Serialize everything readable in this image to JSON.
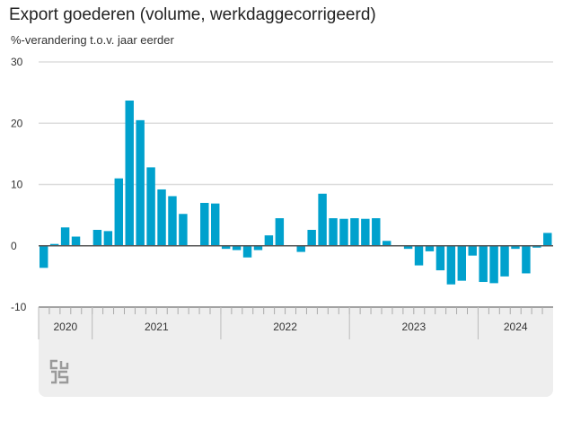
{
  "chart_data": {
    "type": "bar",
    "title": "Export goederen (volume, werkdaggecorrigeerd)",
    "ylabel": "%-verandering t.o.v. jaar eerder",
    "xlabel": "",
    "ylim": [
      -10,
      30
    ],
    "yticks": [
      -10,
      0,
      10,
      20,
      30
    ],
    "grid": true,
    "color": "#00a1cd",
    "years": [
      {
        "label": "2020",
        "months": 5
      },
      {
        "label": "2021",
        "months": 12
      },
      {
        "label": "2022",
        "months": 12
      },
      {
        "label": "2023",
        "months": 12
      },
      {
        "label": "2024",
        "months": 7
      }
    ],
    "values": [
      -3.6,
      0.3,
      3.0,
      1.5,
      0.1,
      2.6,
      2.4,
      11.0,
      23.7,
      20.5,
      12.8,
      9.2,
      8.1,
      5.2,
      0.0,
      7.0,
      6.9,
      -0.5,
      -0.7,
      -1.9,
      -0.7,
      1.7,
      4.5,
      0.0,
      -1.0,
      2.6,
      8.5,
      4.5,
      4.4,
      4.5,
      4.4,
      4.5,
      0.8,
      0.1,
      -0.5,
      -3.2,
      -0.9,
      -4.0,
      -6.3,
      -5.7,
      -1.6,
      -5.9,
      -6.1,
      -5.0,
      -0.5,
      -4.5,
      -0.3,
      2.1
    ]
  },
  "logo_text": "cbs"
}
